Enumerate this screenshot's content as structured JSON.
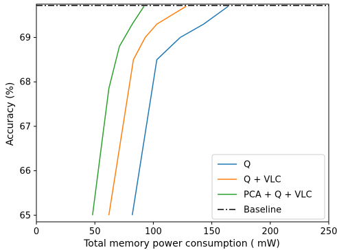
{
  "chart_data": {
    "type": "line",
    "title": "",
    "xlabel": "Total memory power consumption ( mW)",
    "ylabel": "Accuracy (%)",
    "xlim": [
      0,
      250
    ],
    "ylim": [
      64.85,
      69.75
    ],
    "xticks": [
      0,
      50,
      100,
      150,
      200,
      250
    ],
    "yticks": [
      65,
      66,
      67,
      68,
      69
    ],
    "grid": false,
    "legend_position": "lower-right",
    "series": [
      {
        "name": "Q",
        "color": "#1f77b4",
        "style": "solid",
        "x": [
          82,
          103,
          123,
          143,
          164
        ],
        "y": [
          65.0,
          68.5,
          69.0,
          69.3,
          69.7
        ]
      },
      {
        "name": "Q + VLC",
        "color": "#ff7f0e",
        "style": "solid",
        "x": [
          62,
          83,
          93,
          103,
          128
        ],
        "y": [
          65.0,
          68.5,
          69.0,
          69.3,
          69.7
        ]
      },
      {
        "name": "PCA + Q + VLC",
        "color": "#2ca02c",
        "style": "solid",
        "x": [
          48,
          62,
          71,
          82,
          92
        ],
        "y": [
          65.0,
          67.85,
          68.8,
          69.3,
          69.7
        ]
      }
    ],
    "baseline": {
      "name": "Baseline",
      "color": "#000000",
      "style": "dashdot",
      "y": 69.72
    }
  }
}
